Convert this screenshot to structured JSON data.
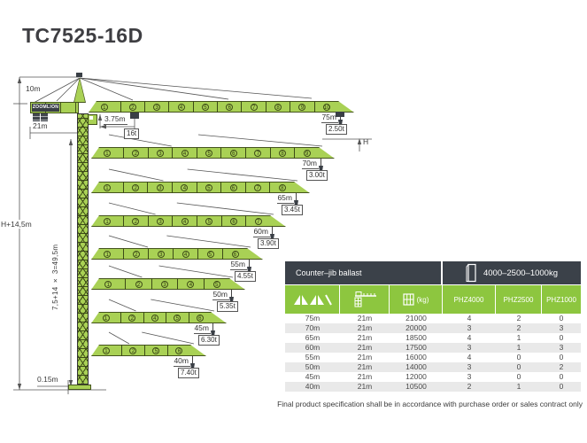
{
  "title": "TC7525-16D",
  "diagram": {
    "labels": {
      "head_height": "10m",
      "counter_jib_length": "21m",
      "brand": "ZOOMLION",
      "trolley_min_radius": "3.75m",
      "max_capacity": "16t",
      "total_height": "H+14,5m",
      "mast_sections": "7,5+14 × 3=49,5m",
      "base_height": "0.15m",
      "hook_height": "H"
    },
    "jibs": [
      {
        "length": "75m",
        "tip_load": "2.50t",
        "segments": [
          1,
          2,
          3,
          4,
          5,
          6,
          7,
          8,
          9,
          10
        ]
      },
      {
        "length": "70m",
        "tip_load": "3.00t",
        "segments": [
          1,
          2,
          3,
          4,
          5,
          6,
          7,
          8,
          9
        ]
      },
      {
        "length": "65m",
        "tip_load": "3.45t",
        "segments": [
          1,
          2,
          3,
          4,
          5,
          6,
          7,
          8
        ]
      },
      {
        "length": "60m",
        "tip_load": "3.90t",
        "segments": [
          1,
          2,
          3,
          4,
          5,
          6,
          7
        ]
      },
      {
        "length": "55m",
        "tip_load": "4.55t",
        "segments": [
          1,
          2,
          3,
          4,
          5,
          6
        ]
      },
      {
        "length": "50m",
        "tip_load": "5.35t",
        "segments": [
          1,
          2,
          3,
          4,
          5
        ]
      },
      {
        "length": "45m",
        "tip_load": "6.30t",
        "segments": [
          1,
          2,
          4,
          5,
          6
        ]
      },
      {
        "length": "40m",
        "tip_load": "7.40t",
        "segments": [
          1,
          2,
          5,
          6
        ]
      }
    ]
  },
  "table": {
    "header1": {
      "left": "Counter–jib ballast",
      "right": "4000–2500–1000kg"
    },
    "header2": {
      "col3_unit": "(kg)",
      "col4": "PHZ4000",
      "col5": "PHZ2500",
      "col6": "PHZ1000"
    },
    "rows": [
      [
        "75m",
        "21m",
        "21000",
        "4",
        "2",
        "0"
      ],
      [
        "70m",
        "21m",
        "20000",
        "3",
        "2",
        "3"
      ],
      [
        "65m",
        "21m",
        "18500",
        "4",
        "1",
        "0"
      ],
      [
        "60m",
        "21m",
        "17500",
        "3",
        "1",
        "3"
      ],
      [
        "55m",
        "21m",
        "16000",
        "4",
        "0",
        "0"
      ],
      [
        "50m",
        "21m",
        "14000",
        "3",
        "0",
        "2"
      ],
      [
        "45m",
        "21m",
        "12000",
        "3",
        "0",
        "0"
      ],
      [
        "40m",
        "21m",
        "10500",
        "2",
        "1",
        "0"
      ]
    ]
  },
  "footer": "Final product specification shall be in accordance with purchase order or sales contract only",
  "colors": {
    "brand_green": "#8dc63f",
    "header_dark": "#3b4149",
    "jib_green": "#a9d155",
    "row_alt": "#e9e9e9"
  }
}
